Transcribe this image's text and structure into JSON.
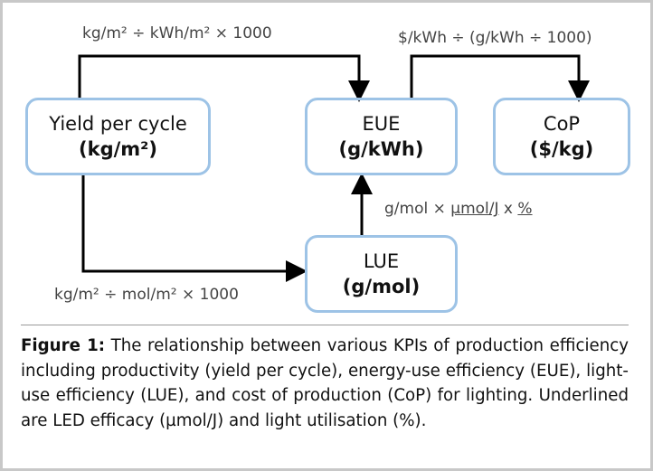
{
  "nodes": [
    {
      "label": "Yield per cycle",
      "unit": "(kg/m²)"
    },
    {
      "label": "EUE",
      "unit": "(g/kWh)"
    },
    {
      "label": "CoP",
      "unit": "($/kg)"
    },
    {
      "label": "LUE",
      "unit": "(g/mol)"
    }
  ],
  "edges": [
    {
      "label": "kg/m² ÷ kWh/m² × 1000"
    },
    {
      "label": "$/kWh ÷ (g/kWh ÷ 1000)"
    },
    {
      "label": "kg/m² ÷ mol/m² × 1000"
    },
    {
      "label_parts": [
        "g/mol × ",
        "µmol/J",
        " x ",
        "%"
      ]
    }
  ],
  "caption": {
    "lead": "Figure 1:",
    "text": " The relationship between various KPIs of production efficiency including productivity (yield per cycle), energy-use efficiency (EUE), light-use efficiency (LUE), and cost of production (CoP) for lighting. Underlined are LED efficacy (µmol/J) and light utilisation (%)."
  }
}
